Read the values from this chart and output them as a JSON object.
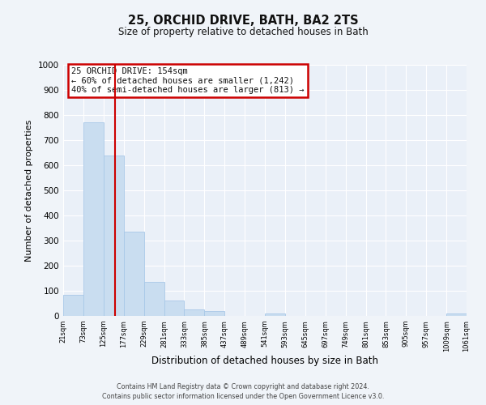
{
  "title": "25, ORCHID DRIVE, BATH, BA2 2TS",
  "subtitle": "Size of property relative to detached houses in Bath",
  "xlabel": "Distribution of detached houses by size in Bath",
  "ylabel": "Number of detached properties",
  "bar_color": "#c9ddf0",
  "bar_edge_color": "#a8c8e8",
  "bg_color": "#eaf0f8",
  "fig_bg_color": "#f0f4f9",
  "grid_color": "#ffffff",
  "vline_color": "#cc0000",
  "annotation_box_text": "25 ORCHID DRIVE: 154sqm\n← 60% of detached houses are smaller (1,242)\n40% of semi-detached houses are larger (813) →",
  "annotation_box_edge_color": "#cc0000",
  "bin_edges": [
    21,
    73,
    125,
    177,
    229,
    281,
    333,
    385,
    437,
    489,
    541,
    593,
    645,
    697,
    749,
    801,
    853,
    905,
    957,
    1009,
    1061
  ],
  "bar_heights": [
    85,
    770,
    640,
    335,
    135,
    60,
    25,
    18,
    0,
    0,
    10,
    0,
    0,
    0,
    0,
    0,
    0,
    0,
    0,
    10
  ],
  "ylim": [
    0,
    1000
  ],
  "yticks": [
    0,
    100,
    200,
    300,
    400,
    500,
    600,
    700,
    800,
    900,
    1000
  ],
  "vline_x": 154,
  "footer_line1": "Contains HM Land Registry data © Crown copyright and database right 2024.",
  "footer_line2": "Contains public sector information licensed under the Open Government Licence v3.0.",
  "tick_labels": [
    "21sqm",
    "73sqm",
    "125sqm",
    "177sqm",
    "229sqm",
    "281sqm",
    "333sqm",
    "385sqm",
    "437sqm",
    "489sqm",
    "541sqm",
    "593sqm",
    "645sqm",
    "697sqm",
    "749sqm",
    "801sqm",
    "853sqm",
    "905sqm",
    "957sqm",
    "1009sqm",
    "1061sqm"
  ]
}
